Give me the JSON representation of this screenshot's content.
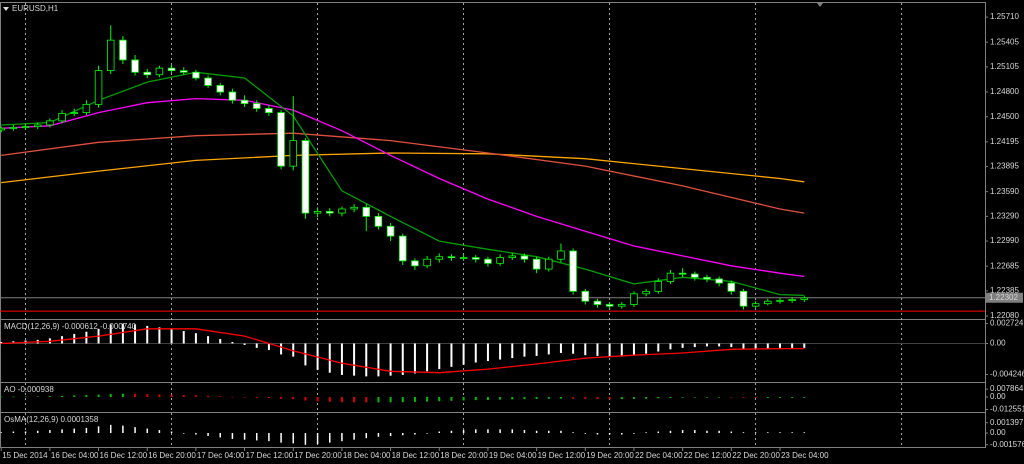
{
  "chart_data": [
    {
      "type": "candlestick",
      "title": "EURUSD,H1",
      "open": [
        1.2434,
        1.2436,
        1.2437,
        1.2438,
        1.244,
        1.2445,
        1.2454,
        1.2455,
        1.2465,
        1.2506,
        1.2543,
        1.2519,
        1.2504,
        1.2501,
        1.2509,
        1.2506,
        1.2504,
        1.2497,
        1.2488,
        1.248,
        1.247,
        1.2466,
        1.246,
        1.2455,
        1.239,
        1.2421,
        1.2333,
        1.2335,
        1.2333,
        1.2338,
        1.234,
        1.2329,
        1.2317,
        1.2305,
        1.2275,
        1.2269,
        1.2277,
        1.228,
        1.2279,
        1.2279,
        1.2277,
        1.2272,
        1.2279,
        1.2281,
        1.2277,
        1.2265,
        1.2277,
        1.2287,
        1.2238,
        1.2226,
        1.2222,
        1.222,
        1.2222,
        1.2235,
        1.2238,
        1.225,
        1.226,
        1.2259,
        1.2255,
        1.2253,
        1.2248,
        1.2238,
        1.222,
        1.2223,
        1.2226,
        1.2227,
        1.2228
      ],
      "high": [
        1.2438,
        1.244,
        1.2441,
        1.2443,
        1.2448,
        1.2458,
        1.246,
        1.247,
        1.2512,
        1.2561,
        1.2548,
        1.2525,
        1.2508,
        1.2512,
        1.2513,
        1.251,
        1.2507,
        1.25,
        1.2491,
        1.2484,
        1.2476,
        1.247,
        1.2464,
        1.2458,
        1.2475,
        1.2424,
        1.234,
        1.2339,
        1.2341,
        1.2344,
        1.2344,
        1.2333,
        1.2321,
        1.2308,
        1.2278,
        1.2281,
        1.2284,
        1.2283,
        1.2283,
        1.2282,
        1.228,
        1.2283,
        1.2285,
        1.2284,
        1.228,
        1.228,
        1.2296,
        1.229,
        1.2241,
        1.2229,
        1.2225,
        1.2225,
        1.2238,
        1.2241,
        1.2254,
        1.2264,
        1.2266,
        1.2262,
        1.2258,
        1.2256,
        1.2251,
        1.2241,
        1.2226,
        1.2229,
        1.223,
        1.2231,
        1.2232
      ],
      "low": [
        1.2431,
        1.2433,
        1.2434,
        1.2435,
        1.2437,
        1.2442,
        1.2451,
        1.2452,
        1.2461,
        1.2502,
        1.2514,
        1.25,
        1.2497,
        1.2498,
        1.2503,
        1.2501,
        1.2494,
        1.2485,
        1.2476,
        1.2466,
        1.2462,
        1.2456,
        1.2451,
        1.2386,
        1.2385,
        1.2326,
        1.2328,
        1.2329,
        1.2329,
        1.2334,
        1.2311,
        1.2313,
        1.2299,
        1.227,
        1.2264,
        1.2266,
        1.2273,
        1.2275,
        1.2275,
        1.2273,
        1.2268,
        1.2269,
        1.2276,
        1.2273,
        1.226,
        1.2262,
        1.2273,
        1.2234,
        1.2222,
        1.2218,
        1.2216,
        1.2217,
        1.2219,
        1.2232,
        1.2235,
        1.2247,
        1.2255,
        1.2251,
        1.2249,
        1.2244,
        1.2234,
        1.2216,
        1.2218,
        1.2221,
        1.2223,
        1.2224,
        1.2225
      ],
      "close": [
        1.2436,
        1.2437,
        1.2438,
        1.244,
        1.2445,
        1.2454,
        1.2455,
        1.2465,
        1.2506,
        1.2543,
        1.2519,
        1.2504,
        1.2501,
        1.2509,
        1.2506,
        1.2504,
        1.2497,
        1.2488,
        1.248,
        1.247,
        1.2466,
        1.246,
        1.2455,
        1.239,
        1.2421,
        1.2333,
        1.2335,
        1.2333,
        1.2338,
        1.234,
        1.2329,
        1.2317,
        1.2305,
        1.2275,
        1.2269,
        1.2277,
        1.228,
        1.2279,
        1.2279,
        1.2277,
        1.2272,
        1.2279,
        1.2281,
        1.2277,
        1.2265,
        1.2277,
        1.2287,
        1.2238,
        1.2226,
        1.2222,
        1.222,
        1.2222,
        1.2235,
        1.2238,
        1.225,
        1.226,
        1.2259,
        1.2255,
        1.2253,
        1.2248,
        1.2238,
        1.222,
        1.2223,
        1.2226,
        1.2227,
        1.2228,
        1.223
      ],
      "bull_color": "#000000",
      "bear_color": "#ffffff",
      "candle_outline": "#00ff00",
      "series": [
        {
          "color": "#ffa500",
          "x": [
            0,
            8,
            16,
            24,
            32,
            40,
            48,
            56,
            64,
            66
          ],
          "values": [
            1.237,
            1.2384,
            1.2397,
            1.2403,
            1.2406,
            1.2405,
            1.2399,
            1.2387,
            1.2375,
            1.2371
          ]
        },
        {
          "color": "#e0503c",
          "x": [
            0,
            8,
            16,
            24,
            32,
            40,
            48,
            56,
            64,
            66
          ],
          "values": [
            1.2403,
            1.2419,
            1.2427,
            1.243,
            1.2421,
            1.2406,
            1.239,
            1.2366,
            1.2338,
            1.2333
          ]
        },
        {
          "color": "#ff00ff",
          "x": [
            0,
            4,
            8,
            12,
            16,
            20,
            24,
            28,
            32,
            36,
            40,
            44,
            48,
            52,
            56,
            60,
            64,
            66
          ],
          "values": [
            1.2436,
            1.2439,
            1.2455,
            1.2467,
            1.2472,
            1.247,
            1.2458,
            1.2433,
            1.2403,
            1.2375,
            1.235,
            1.2329,
            1.2311,
            1.2293,
            1.2281,
            1.2269,
            1.226,
            1.2256
          ]
        },
        {
          "color": "#00a000",
          "x": [
            0,
            4,
            8,
            12,
            16,
            20,
            24,
            28,
            32,
            36,
            40,
            44,
            48,
            52,
            56,
            60,
            64,
            66
          ],
          "values": [
            1.244,
            1.2443,
            1.247,
            1.2492,
            1.2504,
            1.2497,
            1.2451,
            1.236,
            1.2329,
            1.2299,
            1.2289,
            1.228,
            1.2265,
            1.2247,
            1.2255,
            1.225,
            1.2234,
            1.2233
          ]
        }
      ],
      "price_line": {
        "value": 1.22302,
        "label": "1.22302",
        "color": "#7f7f7f"
      },
      "level_line": {
        "value": 1.2214,
        "color": "#ff0000"
      },
      "xlim": [
        -0.1,
        80.85
      ],
      "ylim": [
        1.22056,
        1.25881
      ],
      "yticks": [
        {
          "value": 1.2571,
          "label": "1.25710"
        },
        1.25405,
        1.25105,
        {
          "value": 1.248,
          "label": "1.24800"
        },
        {
          "value": 1.245,
          "label": "1.24500"
        },
        1.24195,
        1.23895,
        {
          "value": 1.2359,
          "label": "1.23590"
        },
        {
          "value": 1.2329,
          "label": "1.23290"
        },
        {
          "value": 1.2299,
          "label": "1.22990"
        },
        1.22685,
        1.22385,
        {
          "value": 1.2208,
          "label": "1.22080"
        }
      ],
      "xticks": [
        {
          "value": 0,
          "label": "15 Dec 2014"
        },
        {
          "value": 4,
          "label": "16 Dec 04:00"
        },
        {
          "value": 8,
          "label": "16 Dec 12:00"
        },
        {
          "value": 12,
          "label": "16 Dec 20:00"
        },
        {
          "value": 16,
          "label": "17 Dec 04:00"
        },
        {
          "value": 20,
          "label": "17 Dec 12:00"
        },
        {
          "value": 24,
          "label": "17 Dec 20:00"
        },
        {
          "value": 28,
          "label": "18 Dec 04:00"
        },
        {
          "value": 32,
          "label": "18 Dec 12:00"
        },
        {
          "value": 36,
          "label": "18 Dec 20:00"
        },
        {
          "value": 40,
          "label": "19 Dec 04:00"
        },
        {
          "value": 44,
          "label": "19 Dec 12:00"
        },
        {
          "value": 48,
          "label": "19 Dec 20:00"
        },
        {
          "value": 52,
          "label": "22 Dec 04:00"
        },
        {
          "value": 56,
          "label": "22 Dec 12:00"
        },
        {
          "value": 60,
          "label": "22 Dec 20:00"
        },
        {
          "value": 64,
          "label": "23 Dec 04:00"
        }
      ],
      "xgrid": [
        2,
        14,
        26,
        38,
        50,
        62,
        74
      ],
      "grid_color": "#d0d0d0"
    },
    {
      "type": "macd",
      "title": "MACD(12,26,9) -0.000612 -0.000740",
      "values": [
        0.0002,
        0.0003,
        0.0004,
        0.0005,
        0.0007,
        0.001,
        0.0013,
        0.0016,
        0.002,
        0.0026,
        0.0027,
        0.0026,
        0.0024,
        0.0022,
        0.002,
        0.0017,
        0.0014,
        0.001,
        0.0006,
        0.0002,
        -0.0002,
        -0.0006,
        -0.0009,
        -0.0015,
        -0.0018,
        -0.003,
        -0.0036,
        -0.004,
        -0.0043,
        -0.0044,
        -0.0045,
        -0.0045,
        -0.0044,
        -0.0043,
        -0.0041,
        -0.0038,
        -0.0035,
        -0.0032,
        -0.0029,
        -0.0026,
        -0.0024,
        -0.0022,
        -0.002,
        -0.0018,
        -0.0017,
        -0.0015,
        -0.0013,
        -0.0014,
        -0.0016,
        -0.0017,
        -0.0018,
        -0.0018,
        -0.0016,
        -0.0014,
        -0.0011,
        -0.0008,
        -0.0006,
        -0.0005,
        -0.0004,
        -0.0004,
        -0.0005,
        -0.0007,
        -0.0007,
        -0.0007,
        -0.0006,
        -0.0006,
        -0.0006
      ],
      "color": "#ffffff",
      "signal": {
        "color": "#ff0000",
        "x": [
          0,
          4,
          8,
          12,
          16,
          20,
          24,
          28,
          32,
          36,
          40,
          44,
          48,
          52,
          56,
          60,
          64,
          66
        ],
        "values": [
          0.0,
          0.0003,
          0.001,
          0.002,
          0.002,
          0.001,
          -0.001,
          -0.0027,
          -0.0038,
          -0.004,
          -0.0035,
          -0.0028,
          -0.002,
          -0.0016,
          -0.0013,
          -0.0008,
          -0.0007,
          -0.0007
        ]
      },
      "xlim": [
        -0.1,
        80.85
      ],
      "ylim": [
        -0.00513,
        0.00307
      ],
      "yticks": [
        0.002724,
        {
          "value": 0,
          "label": "0.00"
        },
        -0.004246
      ]
    },
    {
      "type": "ao",
      "title": "AO -0.000938",
      "values": [
        0.0003,
        0.0004,
        0.0005,
        0.0006,
        0.0008,
        0.0012,
        0.0016,
        0.0019,
        0.0024,
        0.0031,
        0.0032,
        0.0031,
        0.0029,
        0.0026,
        0.0024,
        0.002,
        0.0017,
        0.0012,
        0.0007,
        0.0002,
        -0.0002,
        -0.0007,
        -0.0011,
        -0.0018,
        -0.0022,
        -0.0036,
        -0.0043,
        -0.0048,
        -0.0052,
        -0.0053,
        -0.0054,
        -0.0054,
        -0.0053,
        -0.0052,
        -0.0049,
        -0.0046,
        -0.0042,
        -0.0038,
        -0.0035,
        -0.0031,
        -0.0029,
        -0.0026,
        -0.0024,
        -0.0022,
        -0.002,
        -0.0018,
        -0.0016,
        -0.0017,
        -0.0019,
        -0.002,
        -0.0022,
        -0.0022,
        -0.0019,
        -0.0017,
        -0.0013,
        -0.001,
        -0.0007,
        -0.0006,
        -0.0005,
        -0.0005,
        -0.0006,
        -0.0008,
        -0.0009,
        -0.0009,
        -0.0009,
        -0.0009,
        -0.0009
      ],
      "up_color": "#00c000",
      "down_color": "#e00000",
      "xlim": [
        -0.1,
        80.85
      ],
      "ylim": [
        -0.014,
        0.013
      ],
      "yticks": [
        0.007864,
        {
          "value": 0,
          "label": "0.00"
        },
        -0.012551
      ]
    },
    {
      "type": "bar",
      "title": "OsMA(12,26,9) 0.0001358",
      "values": [
        0.0001,
        0.0002,
        0.0002,
        0.0003,
        0.0004,
        0.0005,
        0.0006,
        0.0007,
        0.0009,
        0.0011,
        0.001,
        0.0008,
        0.0006,
        0.0004,
        0.0002,
        0.0,
        -0.0002,
        -0.0004,
        -0.0006,
        -0.0008,
        -0.0009,
        -0.001,
        -0.0011,
        -0.0013,
        -0.0014,
        -0.0016,
        -0.0015,
        -0.0013,
        -0.0011,
        -0.0009,
        -0.0007,
        -0.0005,
        -0.0004,
        -0.0003,
        -0.0002,
        0.0,
        0.0002,
        0.0003,
        0.0004,
        0.0005,
        0.0005,
        0.0005,
        0.0005,
        0.0004,
        0.0003,
        0.0003,
        0.0003,
        0.0001,
        -0.0001,
        -0.0002,
        -0.0002,
        -0.0002,
        -0.0001,
        0.0001,
        0.0002,
        0.0003,
        0.0004,
        0.0004,
        0.0003,
        0.0003,
        0.0002,
        0.0001,
        0.0001,
        0.0001,
        0.0001,
        0.0001,
        0.0001
      ],
      "color": "#ffffff",
      "xlim": [
        -0.1,
        80.85
      ],
      "ylim": [
        -0.00189,
        0.00257
      ],
      "yticks": [
        0.001397,
        {
          "value": 0,
          "label": "0.00"
        },
        -0.001576
      ]
    }
  ]
}
